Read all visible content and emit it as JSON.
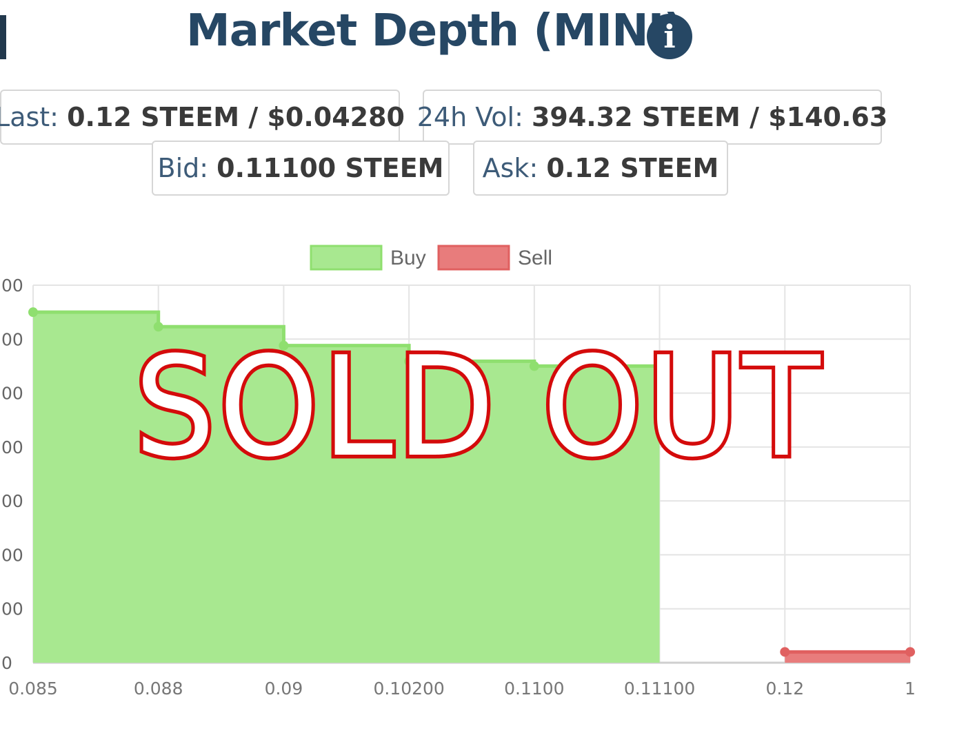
{
  "title": "Market Depth (MINI)",
  "info_icon": "info-circle-icon",
  "stats": {
    "last": {
      "label": "Last:",
      "value": "0.12 STEEM / $0.04280"
    },
    "vol": {
      "label": "24h Vol:",
      "value": "394.32 STEEM / $140.63"
    },
    "bid": {
      "label": "Bid:",
      "value": "0.11100 STEEM"
    },
    "ask": {
      "label": "Ask:",
      "value": "0.12 STEEM"
    }
  },
  "overlay_text": "SOLD OUT",
  "colors": {
    "title": "#264764",
    "buy_fill": "#a8e890",
    "buy_line": "#8fdf6f",
    "sell_fill": "#e87c7c",
    "sell_line": "#e06060",
    "stamp_stroke": "#d40b0b"
  },
  "chart_data": {
    "type": "area",
    "step": true,
    "categories": [
      "0.085",
      "0.088",
      "0.09",
      "0.10200",
      "0.1100",
      "0.11100",
      "0.12",
      "1"
    ],
    "y_tick_labels": [
      "00",
      "00",
      "00",
      "00",
      "00",
      "00",
      "00",
      "0"
    ],
    "ylim": [
      0,
      7
    ],
    "grid": true,
    "legend_position": "top",
    "series": [
      {
        "name": "Buy",
        "color": "#a8e890",
        "values": [
          6.5,
          6.23,
          5.88,
          5.59,
          5.5,
          5.5,
          null,
          null
        ]
      },
      {
        "name": "Sell",
        "color": "#e87c7c",
        "values": [
          null,
          null,
          null,
          null,
          null,
          null,
          0.2,
          0.2
        ]
      }
    ]
  }
}
